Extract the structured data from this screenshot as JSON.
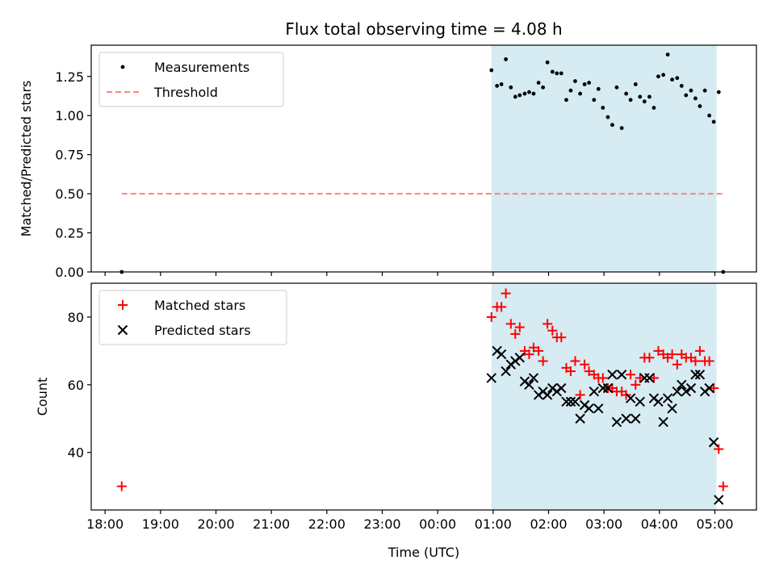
{
  "title": "Flux total observing time = 4.08 h",
  "colors": {
    "shade": "#add8e6",
    "threshold": "#ff8080",
    "matched": "#ff0000",
    "predicted": "#000000",
    "measure": "#000000"
  },
  "chart_data": [
    {
      "type": "scatter",
      "ylabel": "Matched/Predicted stars",
      "xlim": [
        -0.25,
        11.75
      ],
      "ylim": [
        0,
        1.45
      ],
      "shaded_x": [
        6.97,
        11.03
      ],
      "yticks": [
        "0.00",
        "0.25",
        "0.50",
        "0.75",
        "1.00",
        "1.25"
      ],
      "yticks_values": [
        0,
        0.25,
        0.5,
        0.75,
        1.0,
        1.25
      ],
      "legend": {
        "position": "top-left",
        "entries": [
          {
            "label": "Measurements",
            "marker": "dot"
          },
          {
            "label": "Threshold",
            "marker": "dashed-line"
          }
        ]
      },
      "threshold": {
        "value": 0.5,
        "x": [
          0.3,
          11.15
        ]
      },
      "series": [
        {
          "name": "Measurements",
          "x": [
            0.3,
            6.97,
            7.07,
            7.15,
            7.23,
            7.32,
            7.4,
            7.48,
            7.57,
            7.65,
            7.73,
            7.82,
            7.9,
            7.98,
            8.07,
            8.15,
            8.23,
            8.32,
            8.4,
            8.48,
            8.57,
            8.65,
            8.73,
            8.82,
            8.9,
            8.98,
            9.07,
            9.15,
            9.23,
            9.32,
            9.4,
            9.48,
            9.57,
            9.65,
            9.73,
            9.82,
            9.9,
            9.98,
            10.07,
            10.15,
            10.23,
            10.32,
            10.4,
            10.48,
            10.57,
            10.65,
            10.73,
            10.82,
            10.9,
            10.98,
            11.07,
            11.15
          ],
          "y": [
            0.0,
            1.29,
            1.19,
            1.2,
            1.36,
            1.18,
            1.12,
            1.13,
            1.14,
            1.15,
            1.14,
            1.21,
            1.18,
            1.34,
            1.28,
            1.27,
            1.27,
            1.1,
            1.16,
            1.22,
            1.14,
            1.2,
            1.21,
            1.1,
            1.17,
            1.05,
            0.99,
            0.94,
            1.18,
            0.92,
            1.14,
            1.1,
            1.2,
            1.12,
            1.09,
            1.12,
            1.05,
            1.25,
            1.26,
            1.39,
            1.23,
            1.24,
            1.19,
            1.13,
            1.16,
            1.11,
            1.06,
            1.16,
            1.0,
            0.96,
            1.15,
            0.0
          ]
        }
      ]
    },
    {
      "type": "scatter",
      "ylabel": "Count",
      "xlabel": "Time (UTC)",
      "xlim": [
        -0.25,
        11.75
      ],
      "ylim": [
        23,
        90
      ],
      "shaded_x": [
        6.97,
        11.03
      ],
      "xticks": [
        "18:00",
        "19:00",
        "20:00",
        "21:00",
        "22:00",
        "23:00",
        "00:00",
        "01:00",
        "02:00",
        "03:00",
        "04:00",
        "05:00"
      ],
      "xticks_values": [
        0,
        1,
        2,
        3,
        4,
        5,
        6,
        7,
        8,
        9,
        10,
        11
      ],
      "yticks": [
        "40",
        "60",
        "80"
      ],
      "yticks_values": [
        40,
        60,
        80
      ],
      "legend": {
        "position": "top-left",
        "entries": [
          {
            "label": "Matched stars",
            "marker": "plus"
          },
          {
            "label": "Predicted stars",
            "marker": "x"
          }
        ]
      },
      "series": [
        {
          "name": "Matched stars",
          "x": [
            0.3,
            6.97,
            7.07,
            7.15,
            7.23,
            7.32,
            7.4,
            7.48,
            7.57,
            7.65,
            7.73,
            7.82,
            7.9,
            7.98,
            8.07,
            8.15,
            8.23,
            8.32,
            8.4,
            8.48,
            8.57,
            8.65,
            8.73,
            8.82,
            8.9,
            8.98,
            9.07,
            9.15,
            9.23,
            9.32,
            9.4,
            9.48,
            9.57,
            9.65,
            9.73,
            9.82,
            9.9,
            9.98,
            10.07,
            10.15,
            10.23,
            10.32,
            10.4,
            10.48,
            10.57,
            10.65,
            10.73,
            10.82,
            10.9,
            10.98,
            11.07,
            11.15
          ],
          "y": [
            30,
            80,
            83,
            83,
            87,
            78,
            75,
            77,
            70,
            69,
            71,
            70,
            67,
            78,
            76,
            74,
            74,
            65,
            64,
            67,
            57,
            66,
            64,
            63,
            62,
            62,
            59,
            59,
            58,
            58,
            57,
            63,
            60,
            62,
            68,
            68,
            62,
            70,
            69,
            68,
            69,
            66,
            69,
            68,
            68,
            67,
            70,
            67,
            67,
            59,
            41,
            30
          ]
        },
        {
          "name": "Predicted stars",
          "x": [
            6.97,
            7.07,
            7.15,
            7.23,
            7.32,
            7.4,
            7.48,
            7.57,
            7.65,
            7.73,
            7.82,
            7.9,
            7.98,
            8.07,
            8.15,
            8.23,
            8.32,
            8.4,
            8.48,
            8.57,
            8.65,
            8.73,
            8.82,
            8.9,
            8.98,
            9.07,
            9.15,
            9.23,
            9.32,
            9.4,
            9.48,
            9.57,
            9.65,
            9.73,
            9.82,
            9.9,
            9.98,
            10.07,
            10.15,
            10.23,
            10.32,
            10.4,
            10.48,
            10.57,
            10.65,
            10.73,
            10.82,
            10.9,
            10.98,
            11.07
          ],
          "y": [
            62,
            70,
            69,
            64,
            66,
            67,
            68,
            61,
            60,
            62,
            57,
            58,
            57,
            59,
            58,
            59,
            55,
            55,
            55,
            50,
            54,
            53,
            58,
            53,
            59,
            59,
            63,
            49,
            63,
            50,
            56,
            50,
            55,
            62,
            62,
            56,
            55,
            49,
            56,
            53,
            58,
            60,
            58,
            59,
            63,
            63,
            58,
            59,
            43,
            26
          ]
        }
      ]
    }
  ]
}
